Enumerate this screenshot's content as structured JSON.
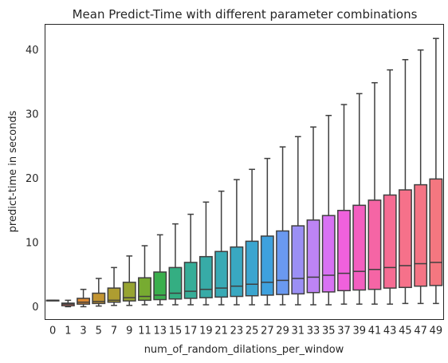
{
  "chart_data": {
    "type": "box",
    "title": "Mean Predict-Time with different parameter combinations",
    "xlabel": "num_of_random_dilations_per_window",
    "ylabel": "predict-time in seconds",
    "ylim": [
      -2,
      44
    ],
    "yticks": [
      0,
      10,
      20,
      30,
      40
    ],
    "grid": false,
    "categories": [
      "0",
      "1",
      "3",
      "5",
      "7",
      "9",
      "11",
      "13",
      "15",
      "17",
      "19",
      "21",
      "23",
      "25",
      "27",
      "29",
      "31",
      "33",
      "35",
      "37",
      "39",
      "41",
      "43",
      "45",
      "47",
      "49"
    ],
    "colors": [
      "#f77189",
      "#f0796c",
      "#dc8932",
      "#c39532",
      "#ae9d31",
      "#97a431",
      "#77ab31",
      "#3aaf4d",
      "#34ae82",
      "#36ad98",
      "#37aba7",
      "#38aab5",
      "#39a8c1",
      "#3ba5cf",
      "#3ea1de",
      "#6a99f0",
      "#9b8ff4",
      "#bd84f4",
      "#d872f3",
      "#f061dd",
      "#f35fc0",
      "#f565a5",
      "#f66c93",
      "#f6718a",
      "#f57485",
      "#f47780"
    ],
    "series": [
      {
        "category": "0",
        "whislo": 1.0,
        "q1": 1.0,
        "med": 1.0,
        "q3": 1.0,
        "whishi": 1.0
      },
      {
        "category": "1",
        "whislo": 0.0,
        "q1": 0.15,
        "med": 0.4,
        "q3": 0.55,
        "whishi": 1.0
      },
      {
        "category": "3",
        "whislo": 0.0,
        "q1": 0.4,
        "med": 0.7,
        "q3": 1.3,
        "whishi": 2.7
      },
      {
        "category": "5",
        "whislo": 0.1,
        "q1": 0.5,
        "med": 0.8,
        "q3": 2.1,
        "whishi": 4.4
      },
      {
        "category": "7",
        "whislo": 0.2,
        "q1": 0.7,
        "med": 1.0,
        "q3": 2.9,
        "whishi": 6.1
      },
      {
        "category": "9",
        "whislo": 0.2,
        "q1": 0.9,
        "med": 1.4,
        "q3": 3.8,
        "whishi": 7.9
      },
      {
        "category": "11",
        "whislo": 0.3,
        "q1": 1.0,
        "med": 1.6,
        "q3": 4.5,
        "whishi": 9.5
      },
      {
        "category": "13",
        "whislo": 0.3,
        "q1": 1.1,
        "med": 1.8,
        "q3": 5.4,
        "whishi": 11.2
      },
      {
        "category": "15",
        "whislo": 0.3,
        "q1": 1.2,
        "med": 2.1,
        "q3": 6.1,
        "whishi": 12.9
      },
      {
        "category": "17",
        "whislo": 0.3,
        "q1": 1.3,
        "med": 2.4,
        "q3": 6.9,
        "whishi": 14.4
      },
      {
        "category": "19",
        "whislo": 0.3,
        "q1": 1.4,
        "med": 2.7,
        "q3": 7.8,
        "whishi": 16.3
      },
      {
        "category": "21",
        "whislo": 0.3,
        "q1": 1.5,
        "med": 2.9,
        "q3": 8.6,
        "whishi": 18.0
      },
      {
        "category": "23",
        "whislo": 0.3,
        "q1": 1.6,
        "med": 3.2,
        "q3": 9.3,
        "whishi": 19.8
      },
      {
        "category": "25",
        "whislo": 0.3,
        "q1": 1.7,
        "med": 3.5,
        "q3": 10.2,
        "whishi": 21.4
      },
      {
        "category": "27",
        "whislo": 0.3,
        "q1": 1.8,
        "med": 3.8,
        "q3": 11.0,
        "whishi": 23.1
      },
      {
        "category": "29",
        "whislo": 0.3,
        "q1": 1.9,
        "med": 4.1,
        "q3": 11.8,
        "whishi": 24.9
      },
      {
        "category": "31",
        "whislo": 0.3,
        "q1": 2.0,
        "med": 4.4,
        "q3": 12.6,
        "whishi": 26.5
      },
      {
        "category": "33",
        "whislo": 0.3,
        "q1": 2.2,
        "med": 4.6,
        "q3": 13.5,
        "whishi": 28.0
      },
      {
        "category": "35",
        "whislo": 0.3,
        "q1": 2.3,
        "med": 4.9,
        "q3": 14.2,
        "whishi": 29.8
      },
      {
        "category": "37",
        "whislo": 0.4,
        "q1": 2.5,
        "med": 5.2,
        "q3": 15.0,
        "whishi": 31.5
      },
      {
        "category": "39",
        "whislo": 0.4,
        "q1": 2.6,
        "med": 5.5,
        "q3": 15.8,
        "whishi": 33.2
      },
      {
        "category": "41",
        "whislo": 0.4,
        "q1": 2.7,
        "med": 5.8,
        "q3": 16.6,
        "whishi": 34.9
      },
      {
        "category": "43",
        "whislo": 0.4,
        "q1": 2.9,
        "med": 6.1,
        "q3": 17.4,
        "whishi": 36.9
      },
      {
        "category": "45",
        "whislo": 0.5,
        "q1": 3.0,
        "med": 6.4,
        "q3": 18.2,
        "whishi": 38.5
      },
      {
        "category": "47",
        "whislo": 0.5,
        "q1": 3.2,
        "med": 6.7,
        "q3": 19.0,
        "whishi": 40.0
      },
      {
        "category": "49",
        "whislo": 0.5,
        "q1": 3.3,
        "med": 6.9,
        "q3": 19.9,
        "whishi": 41.8
      }
    ]
  }
}
